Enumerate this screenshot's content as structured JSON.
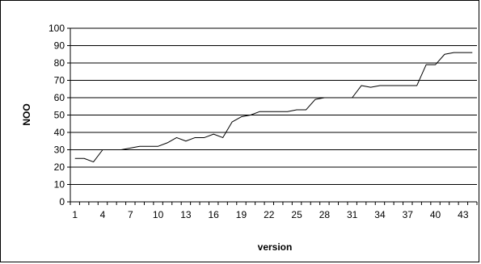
{
  "chart_data": {
    "type": "line",
    "title": "",
    "xlabel": "version",
    "ylabel": "NOO",
    "ylim": [
      0,
      100
    ],
    "yticks": [
      0,
      10,
      20,
      30,
      40,
      50,
      60,
      70,
      80,
      90,
      100
    ],
    "xlim": [
      1,
      44
    ],
    "xticks": [
      1,
      4,
      7,
      10,
      13,
      16,
      19,
      22,
      25,
      28,
      31,
      34,
      37,
      40,
      43
    ],
    "grid": "horizontal",
    "legend": "none",
    "colors": {
      "line": "#000000",
      "grid": "#000000",
      "background": "#ffffff"
    },
    "series": [
      {
        "x": [
          1,
          2,
          3,
          4,
          5,
          6,
          7,
          8,
          9,
          10,
          11,
          12,
          13,
          14,
          15,
          16,
          17,
          18,
          19,
          20,
          21,
          22,
          23,
          24,
          25,
          26,
          27,
          28,
          29,
          30,
          31,
          32,
          33,
          34,
          35,
          36,
          37,
          38,
          39,
          40,
          41,
          42,
          43,
          44
        ],
        "values": [
          25,
          25,
          23,
          30,
          30,
          30,
          31,
          32,
          32,
          32,
          34,
          37,
          35,
          37,
          37,
          39,
          37,
          46,
          49,
          50,
          52,
          52,
          52,
          52,
          53,
          53,
          59,
          60,
          60,
          60,
          60,
          67,
          66,
          67,
          67,
          67,
          67,
          67,
          79,
          79,
          85,
          86,
          86,
          86
        ]
      }
    ]
  }
}
